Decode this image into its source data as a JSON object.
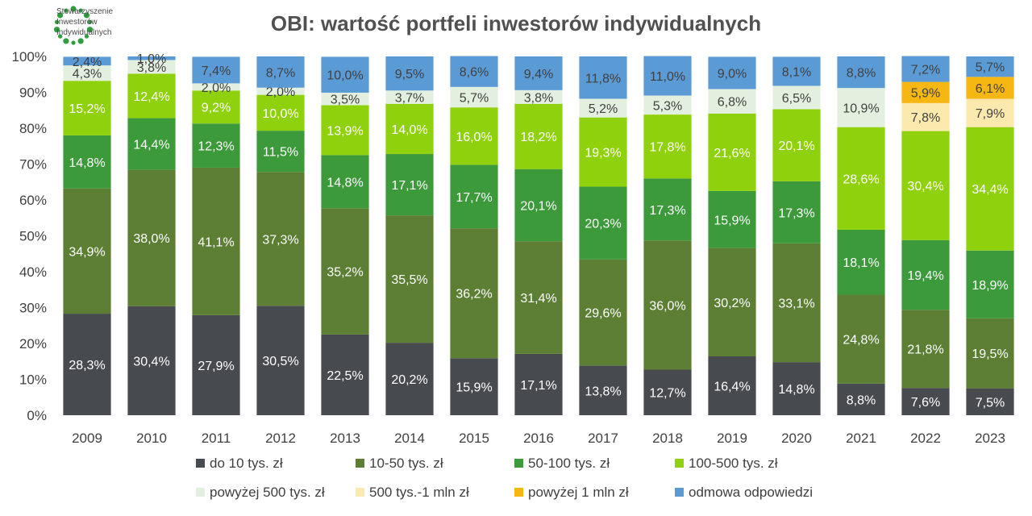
{
  "logo": {
    "lines": [
      "Stowarzyszenie",
      "Inwestorów",
      "Indywidualnych"
    ],
    "color": "#2e9e3e"
  },
  "chart_data": {
    "type": "bar",
    "stacked": true,
    "title": "OBI: wartość portfeli inwestorów indywidualnych",
    "categories": [
      "2009",
      "2010",
      "2011",
      "2012",
      "2013",
      "2014",
      "2015",
      "2016",
      "2017",
      "2018",
      "2019",
      "2020",
      "2021",
      "2022",
      "2023"
    ],
    "ylim": [
      0,
      100
    ],
    "yticks": [
      "0%",
      "10%",
      "20%",
      "30%",
      "40%",
      "50%",
      "60%",
      "70%",
      "80%",
      "90%",
      "100%"
    ],
    "grid": false,
    "legend_position": "bottom",
    "series": [
      {
        "name": "do 10 tys. zł",
        "color": "#474b4f",
        "label_color": "#ffffff",
        "values": [
          28.3,
          30.4,
          27.9,
          30.5,
          22.5,
          20.2,
          15.9,
          17.1,
          13.8,
          12.7,
          16.4,
          14.8,
          8.8,
          7.6,
          7.5
        ],
        "labels": [
          "28,3%",
          "30,4%",
          "27,9%",
          "30,5%",
          "22,5%",
          "20,2%",
          "15,9%",
          "17,1%",
          "13,8%",
          "12,7%",
          "16,4%",
          "14,8%",
          "8,8%",
          "7,6%",
          "7,5%"
        ]
      },
      {
        "name": "10-50 tys. zł",
        "color": "#5c7f34",
        "label_color": "#ffffff",
        "values": [
          34.9,
          38.0,
          41.1,
          37.3,
          35.2,
          35.5,
          36.2,
          31.4,
          29.6,
          36.0,
          30.2,
          33.1,
          24.8,
          21.8,
          19.5
        ],
        "labels": [
          "34,9%",
          "38,0%",
          "41,1%",
          "37,3%",
          "35,2%",
          "35,5%",
          "36,2%",
          "31,4%",
          "29,6%",
          "36,0%",
          "30,2%",
          "33,1%",
          "24,8%",
          "21,8%",
          "19,5%"
        ]
      },
      {
        "name": "50-100 tys. zł",
        "color": "#3c9a3a",
        "label_color": "#ffffff",
        "values": [
          14.8,
          14.4,
          12.3,
          11.5,
          14.8,
          17.1,
          17.7,
          20.1,
          20.3,
          17.3,
          15.9,
          17.3,
          18.1,
          19.4,
          18.9
        ],
        "labels": [
          "14,8%",
          "14,4%",
          "12,3%",
          "11,5%",
          "14,8%",
          "17,1%",
          "17,7%",
          "20,1%",
          "20,3%",
          "17,3%",
          "15,9%",
          "17,3%",
          "18,1%",
          "19,4%",
          "18,9%"
        ]
      },
      {
        "name": "100-500 tys. zł",
        "color": "#8fd10c",
        "label_color": "#ffffff",
        "values": [
          15.2,
          12.4,
          9.2,
          10.0,
          13.9,
          14.0,
          16.0,
          18.2,
          19.3,
          17.8,
          21.6,
          20.1,
          28.6,
          30.4,
          34.4
        ],
        "labels": [
          "15,2%",
          "12,4%",
          "9,2%",
          "10,0%",
          "13,9%",
          "14,0%",
          "16,0%",
          "18,2%",
          "19,3%",
          "17,8%",
          "21,6%",
          "20,1%",
          "28,6%",
          "30,4%",
          "34,4%"
        ]
      },
      {
        "name": "powyżej 500 tys. zł",
        "color": "#e3f0df",
        "label_color": "#404040",
        "values": [
          4.3,
          3.8,
          2.0,
          2.0,
          3.5,
          3.7,
          5.7,
          3.8,
          5.2,
          5.3,
          6.8,
          6.5,
          10.9,
          0,
          0
        ],
        "labels": [
          "4,3%",
          "3,8%",
          "2,0%",
          "2,0%",
          "3,5%",
          "3,7%",
          "5,7%",
          "3,8%",
          "5,2%",
          "5,3%",
          "6,8%",
          "6,5%",
          "10,9%",
          "",
          ""
        ]
      },
      {
        "name": "500 tys.-1 mln zł",
        "color": "#fbe9ad",
        "label_color": "#404040",
        "values": [
          0,
          0,
          0,
          0,
          0,
          0,
          0,
          0,
          0,
          0,
          0,
          0,
          0,
          7.8,
          7.9
        ],
        "labels": [
          "",
          "",
          "",
          "",
          "",
          "",
          "",
          "",
          "",
          "",
          "",
          "",
          "",
          "7,8%",
          "7,9%"
        ]
      },
      {
        "name": "powyżej 1 mln zł",
        "color": "#f6b712",
        "label_color": "#404040",
        "values": [
          0,
          0,
          0,
          0,
          0,
          0,
          0,
          0,
          0,
          0,
          0,
          0,
          0,
          5.9,
          6.1
        ],
        "labels": [
          "",
          "",
          "",
          "",
          "",
          "",
          "",
          "",
          "",
          "",
          "",
          "",
          "",
          "5,9%",
          "6,1%"
        ]
      },
      {
        "name": "odmowa odpowiedzi",
        "color": "#5b9bd5",
        "label_color": "#404040",
        "values": [
          2.4,
          1.0,
          7.4,
          8.7,
          10.0,
          9.5,
          8.6,
          9.4,
          11.8,
          11.0,
          9.0,
          8.1,
          8.8,
          7.2,
          5.7
        ],
        "labels": [
          "2,4%",
          "1,0%",
          "7,4%",
          "8,7%",
          "10,0%",
          "9,5%",
          "8,6%",
          "9,4%",
          "11,8%",
          "11,0%",
          "9,0%",
          "8,1%",
          "8,8%",
          "7,2%",
          "5,7%"
        ]
      }
    ]
  }
}
